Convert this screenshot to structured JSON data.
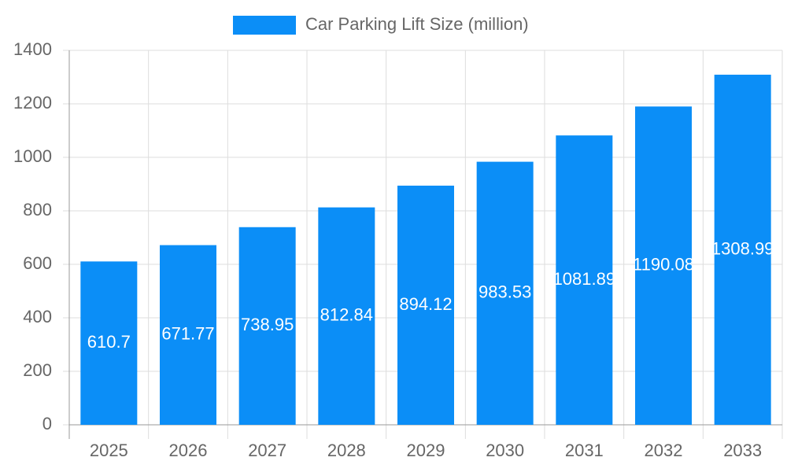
{
  "chart_data": {
    "type": "bar",
    "legend_label": "Car Parking Lift Size (million)",
    "categories": [
      "2025",
      "2026",
      "2027",
      "2028",
      "2029",
      "2030",
      "2031",
      "2032",
      "2033"
    ],
    "values": [
      610.7,
      671.77,
      738.95,
      812.84,
      894.12,
      983.53,
      1081.89,
      1190.08,
      1308.99
    ],
    "color": "#0b8ef7",
    "ylim": [
      0,
      1400
    ],
    "yticks": [
      0,
      200,
      400,
      600,
      800,
      1000,
      1200,
      1400
    ],
    "grid": true,
    "legend": "top"
  }
}
